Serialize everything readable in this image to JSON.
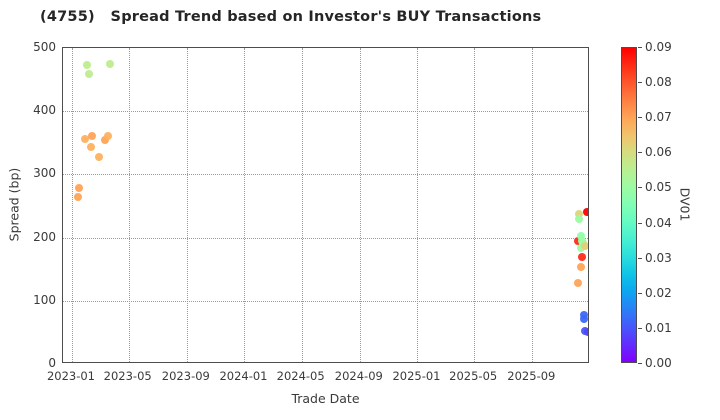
{
  "title": "(4755)   Spread Trend based on Investor's BUY Transactions",
  "chart_data": {
    "type": "scatter",
    "title": "(4755)   Spread Trend based on Investor's BUY Transactions",
    "xlabel": "Trade Date",
    "ylabel": "Spread (bp)",
    "colorbar_label": "DV01",
    "colormap": "rainbow",
    "grid": "dotted",
    "x_range": [
      "2022-12-13",
      "2026-01-01"
    ],
    "ylim": [
      0,
      500
    ],
    "color_range": [
      0.0,
      0.09
    ],
    "x_tick_labels": [
      "2023-01",
      "2023-05",
      "2023-09",
      "2024-01",
      "2024-05",
      "2024-09",
      "2025-01",
      "2025-05",
      "2025-09"
    ],
    "y_ticks": [
      0,
      100,
      200,
      300,
      400,
      500
    ],
    "colorbar_ticks": [
      "0.00",
      "0.01",
      "0.02",
      "0.03",
      "0.04",
      "0.05",
      "0.06",
      "0.07",
      "0.08",
      "0.09"
    ],
    "points": [
      {
        "date": "2023-01-14",
        "spread": 264,
        "dv01": 0.07
      },
      {
        "date": "2023-01-16",
        "spread": 279,
        "dv01": 0.07
      },
      {
        "date": "2023-01-29",
        "spread": 356,
        "dv01": 0.068
      },
      {
        "date": "2023-02-01",
        "spread": 473,
        "dv01": 0.056
      },
      {
        "date": "2023-02-07",
        "spread": 459,
        "dv01": 0.056
      },
      {
        "date": "2023-02-11",
        "spread": 343,
        "dv01": 0.068
      },
      {
        "date": "2023-02-12",
        "spread": 360,
        "dv01": 0.07
      },
      {
        "date": "2023-02-28",
        "spread": 328,
        "dv01": 0.068
      },
      {
        "date": "2023-03-11",
        "spread": 354,
        "dv01": 0.07
      },
      {
        "date": "2023-03-18",
        "spread": 361,
        "dv01": 0.068
      },
      {
        "date": "2023-03-22",
        "spread": 475,
        "dv01": 0.056
      },
      {
        "date": "2025-12-06",
        "spread": 194,
        "dv01": 0.085
      },
      {
        "date": "2025-12-06",
        "spread": 128,
        "dv01": 0.07
      },
      {
        "date": "2025-12-08",
        "spread": 237,
        "dv01": 0.062
      },
      {
        "date": "2025-12-08",
        "spread": 230,
        "dv01": 0.05
      },
      {
        "date": "2025-12-12",
        "spread": 154,
        "dv01": 0.07
      },
      {
        "date": "2025-12-13",
        "spread": 184,
        "dv01": 0.05
      },
      {
        "date": "2025-12-14",
        "spread": 203,
        "dv01": 0.048
      },
      {
        "date": "2025-12-16",
        "spread": 195,
        "dv01": 0.05
      },
      {
        "date": "2025-12-16",
        "spread": 170,
        "dv01": 0.085
      },
      {
        "date": "2025-12-18",
        "spread": 192,
        "dv01": 0.05
      },
      {
        "date": "2025-12-22",
        "spread": 187,
        "dv01": 0.063
      },
      {
        "date": "2025-12-26",
        "spread": 240,
        "dv01": 0.09
      },
      {
        "date": "2025-12-19",
        "spread": 77,
        "dv01": 0.012
      },
      {
        "date": "2025-12-19",
        "spread": 71,
        "dv01": 0.012
      },
      {
        "date": "2025-12-21",
        "spread": 52,
        "dv01": 0.01
      },
      {
        "date": "2025-12-28",
        "spread": 50,
        "dv01": 0.008
      }
    ]
  }
}
